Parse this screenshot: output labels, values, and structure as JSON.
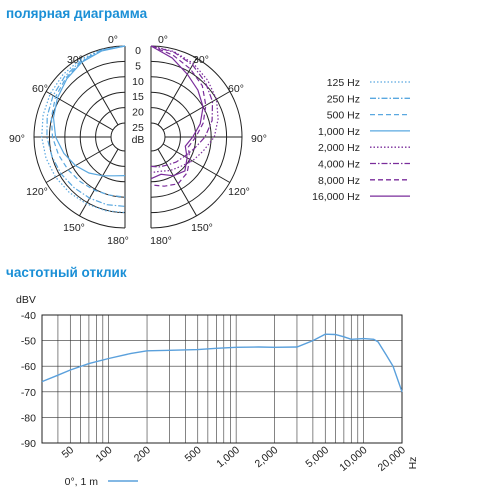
{
  "titles": {
    "polar": "полярная диаграмма",
    "frequency": "частотный отклик"
  },
  "colors": {
    "accent": "#1a8fd6",
    "blue_line": "#5aa0dc",
    "light_blue": "#7fbbe8",
    "purple": "#7a2d9b",
    "grid": "#222222"
  },
  "chart_data": [
    {
      "type": "polar",
      "title": "полярная диаграмма",
      "radial_axis": {
        "label": "dB",
        "ticks": [
          "0",
          "5",
          "10",
          "15",
          "20",
          "25"
        ],
        "range": [
          0,
          25
        ]
      },
      "angle_ticks": [
        "0°",
        "30°",
        "60°",
        "90°",
        "120°",
        "150°",
        "180°"
      ],
      "legend": {
        "placement": "right",
        "entries": [
          {
            "name": "125 Hz",
            "color": "#5aa8e0",
            "style": "dotted"
          },
          {
            "name": "250 Hz",
            "color": "#5aa8e0",
            "style": "dash-dot"
          },
          {
            "name": "500 Hz",
            "color": "#5aa8e0",
            "style": "dashed"
          },
          {
            "name": "1,000 Hz",
            "color": "#5aa8e0",
            "style": "solid"
          },
          {
            "name": "2,000 Hz",
            "color": "#7a2d9b",
            "style": "dotted"
          },
          {
            "name": "4,000 Hz",
            "color": "#7a2d9b",
            "style": "dash-dot"
          },
          {
            "name": "8,000 Hz",
            "color": "#7a2d9b",
            "style": "dashed"
          },
          {
            "name": "16,000 Hz",
            "color": "#7a2d9b",
            "style": "solid"
          }
        ]
      },
      "left_half": {
        "angles": [
          0,
          15,
          30,
          45,
          60,
          75,
          90,
          105,
          120,
          135,
          150,
          165,
          180
        ],
        "series": [
          {
            "name": "125 Hz",
            "db": [
              0,
              0.2,
              0.5,
              1,
              1.5,
              2,
              2.5,
              3,
              3.5,
              4,
              4.5,
              4.8,
              5
            ]
          },
          {
            "name": "250 Hz",
            "db": [
              0,
              0.3,
              1,
              1.8,
              2.6,
              3.4,
              4.2,
              5,
              5.6,
              6.2,
              6.6,
              6.8,
              7
            ]
          },
          {
            "name": "500 Hz",
            "db": [
              0,
              0.5,
              1.3,
              2.4,
              3.5,
              4.8,
              6,
              7.2,
              8.2,
              9,
              9.6,
              10,
              10
            ]
          },
          {
            "name": "1,000 Hz",
            "db": [
              0,
              0.6,
              1.5,
              2.8,
              4.2,
              5.5,
              7,
              9,
              11,
              13,
              15,
              16.5,
              17
            ]
          }
        ]
      },
      "right_half": {
        "angles": [
          0,
          15,
          30,
          45,
          60,
          75,
          90,
          105,
          120,
          135,
          150,
          165,
          180
        ],
        "series": [
          {
            "name": "2,000 Hz",
            "db": [
              0,
              0.8,
              2,
              3.5,
              5,
              7,
              9,
              12,
              14,
              16,
              17,
              18,
              18
            ]
          },
          {
            "name": "4,000 Hz",
            "db": [
              0,
              1,
              2.5,
              4.5,
              6.5,
              9,
              12,
              15,
              17,
              18,
              19,
              19.5,
              20
            ]
          },
          {
            "name": "8,000 Hz",
            "db": [
              0,
              2,
              4,
              6,
              9,
              12,
              15,
              17,
              15,
              13,
              12,
              13,
              14
            ]
          },
          {
            "name": "16,000 Hz",
            "db": [
              0,
              3,
              6,
              8,
              10,
              13,
              16,
              18,
              16,
              14,
              15,
              17,
              16
            ]
          }
        ]
      }
    },
    {
      "type": "line",
      "title": "частотный отклик",
      "xlabel": "Hz",
      "ylabel": "dBV",
      "x_scale": "log",
      "xlim": [
        30,
        20000
      ],
      "ylim": [
        -90,
        -40
      ],
      "x_ticks": [
        {
          "value": 50,
          "label": "50"
        },
        {
          "value": 100,
          "label": "100"
        },
        {
          "value": 200,
          "label": "200"
        },
        {
          "value": 500,
          "label": "500"
        },
        {
          "value": 1000,
          "label": "1,000"
        },
        {
          "value": 2000,
          "label": "2,000"
        },
        {
          "value": 5000,
          "label": "5,000"
        },
        {
          "value": 10000,
          "label": "10,000"
        },
        {
          "value": 20000,
          "label": "20,000"
        }
      ],
      "y_ticks": [
        {
          "value": -40,
          "label": "-40"
        },
        {
          "value": -50,
          "label": "-50"
        },
        {
          "value": -60,
          "label": "-60"
        },
        {
          "value": -70,
          "label": "-70"
        },
        {
          "value": -80,
          "label": "-80"
        },
        {
          "value": -90,
          "label": "-90"
        }
      ],
      "grid": true,
      "legend": {
        "placement": "bottom-left",
        "entries": [
          {
            "name": "0°, 1 m",
            "color": "#5aa0dc"
          }
        ]
      },
      "series": [
        {
          "name": "0°, 1 m",
          "x": [
            30,
            40,
            50,
            70,
            100,
            150,
            200,
            300,
            500,
            700,
            1000,
            1500,
            2000,
            3000,
            4000,
            5000,
            6000,
            7000,
            8000,
            10000,
            12000,
            13000,
            15000,
            17000,
            20000
          ],
          "y": [
            -66,
            -63.5,
            -61.5,
            -59,
            -57,
            -55,
            -54,
            -53.8,
            -53.5,
            -53,
            -52.6,
            -52.5,
            -52.6,
            -52.5,
            -50,
            -47.5,
            -47.6,
            -48.5,
            -49.5,
            -49.2,
            -49.5,
            -50.5,
            -55.5,
            -60,
            -70
          ]
        }
      ]
    }
  ]
}
